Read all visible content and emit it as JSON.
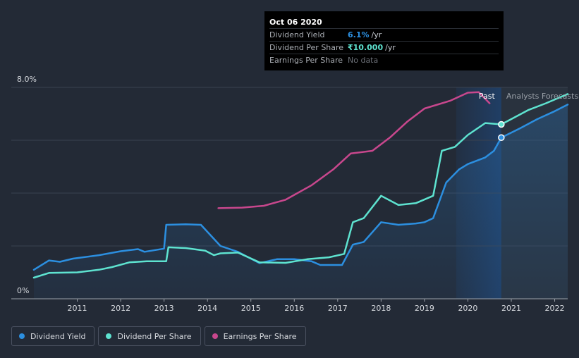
{
  "tooltip": {
    "date": "Oct 06 2020",
    "rows": [
      {
        "label": "Dividend Yield",
        "value": "6.1%",
        "unit": "/yr",
        "color": "#2c8fe0"
      },
      {
        "label": "Dividend Per Share",
        "value": "₹10.000",
        "unit": "/yr",
        "color": "#5ee3d0"
      },
      {
        "label": "Earnings Per Share",
        "value": "No data",
        "unit": "",
        "color": "#6c7078"
      }
    ]
  },
  "regions": {
    "past": "Past",
    "forecast": "Analysts Forecasts"
  },
  "legend": [
    {
      "label": "Dividend Yield",
      "color": "#2c8fe0"
    },
    {
      "label": "Dividend Per Share",
      "color": "#5ee3d0"
    },
    {
      "label": "Earnings Per Share",
      "color": "#c8478d"
    }
  ],
  "chart_data": {
    "type": "line",
    "ylim": [
      0,
      8
    ],
    "yticks": [
      "8.0%",
      "0%"
    ],
    "xlim": [
      2010.0,
      2022.3
    ],
    "xticks": [
      "2011",
      "2012",
      "2013",
      "2014",
      "2015",
      "2016",
      "2017",
      "2018",
      "2019",
      "2020",
      "2021",
      "2022"
    ],
    "tooltip_x": 2020.77,
    "series": [
      {
        "name": "Dividend Yield",
        "color": "#2c8fe0",
        "unit": "%",
        "points": [
          [
            2010.0,
            1.1
          ],
          [
            2010.35,
            1.45
          ],
          [
            2010.6,
            1.4
          ],
          [
            2010.9,
            1.52
          ],
          [
            2011.5,
            1.65
          ],
          [
            2012.0,
            1.8
          ],
          [
            2012.4,
            1.88
          ],
          [
            2012.55,
            1.78
          ],
          [
            2013.0,
            1.9
          ],
          [
            2013.05,
            2.8
          ],
          [
            2013.5,
            2.82
          ],
          [
            2013.85,
            2.8
          ],
          [
            2014.3,
            2.0
          ],
          [
            2014.7,
            1.78
          ],
          [
            2015.2,
            1.35
          ],
          [
            2015.6,
            1.5
          ],
          [
            2016.0,
            1.5
          ],
          [
            2016.4,
            1.42
          ],
          [
            2016.6,
            1.28
          ],
          [
            2017.1,
            1.28
          ],
          [
            2017.35,
            2.05
          ],
          [
            2017.6,
            2.15
          ],
          [
            2018.0,
            2.9
          ],
          [
            2018.4,
            2.8
          ],
          [
            2018.8,
            2.85
          ],
          [
            2019.0,
            2.9
          ],
          [
            2019.2,
            3.05
          ],
          [
            2019.5,
            4.4
          ],
          [
            2019.8,
            4.9
          ],
          [
            2020.0,
            5.1
          ],
          [
            2020.4,
            5.35
          ],
          [
            2020.6,
            5.6
          ],
          [
            2020.77,
            6.1
          ],
          [
            2021.2,
            6.45
          ],
          [
            2021.6,
            6.8
          ],
          [
            2022.0,
            7.1
          ],
          [
            2022.3,
            7.35
          ]
        ]
      },
      {
        "name": "Dividend Per Share",
        "color": "#5ee3d0",
        "unit": "₹",
        "points": [
          [
            2010.0,
            0.8
          ],
          [
            2010.35,
            0.98
          ],
          [
            2011.0,
            1.0
          ],
          [
            2011.5,
            1.1
          ],
          [
            2011.8,
            1.2
          ],
          [
            2012.2,
            1.38
          ],
          [
            2012.6,
            1.42
          ],
          [
            2013.05,
            1.42
          ],
          [
            2013.1,
            1.95
          ],
          [
            2013.5,
            1.92
          ],
          [
            2013.95,
            1.82
          ],
          [
            2014.15,
            1.65
          ],
          [
            2014.3,
            1.72
          ],
          [
            2014.7,
            1.75
          ],
          [
            2015.2,
            1.38
          ],
          [
            2015.8,
            1.36
          ],
          [
            2016.3,
            1.5
          ],
          [
            2016.8,
            1.57
          ],
          [
            2017.15,
            1.7
          ],
          [
            2017.35,
            2.9
          ],
          [
            2017.6,
            3.05
          ],
          [
            2018.0,
            3.9
          ],
          [
            2018.4,
            3.55
          ],
          [
            2018.8,
            3.62
          ],
          [
            2019.2,
            3.9
          ],
          [
            2019.4,
            5.6
          ],
          [
            2019.7,
            5.75
          ],
          [
            2020.0,
            6.2
          ],
          [
            2020.4,
            6.65
          ],
          [
            2020.77,
            6.6
          ],
          [
            2021.0,
            6.8
          ],
          [
            2021.4,
            7.15
          ],
          [
            2021.8,
            7.4
          ],
          [
            2022.3,
            7.75
          ]
        ]
      },
      {
        "name": "Earnings Per Share",
        "color": "#c8478d",
        "unit": "",
        "points": [
          [
            2014.25,
            3.43
          ],
          [
            2014.8,
            3.45
          ],
          [
            2015.3,
            3.52
          ],
          [
            2015.8,
            3.75
          ],
          [
            2016.4,
            4.3
          ],
          [
            2016.9,
            4.9
          ],
          [
            2017.3,
            5.5
          ],
          [
            2017.8,
            5.6
          ],
          [
            2018.2,
            6.1
          ],
          [
            2018.6,
            6.7
          ],
          [
            2019.0,
            7.2
          ],
          [
            2019.6,
            7.5
          ],
          [
            2020.0,
            7.8
          ],
          [
            2020.25,
            7.82
          ],
          [
            2020.5,
            7.4
          ]
        ]
      }
    ]
  }
}
